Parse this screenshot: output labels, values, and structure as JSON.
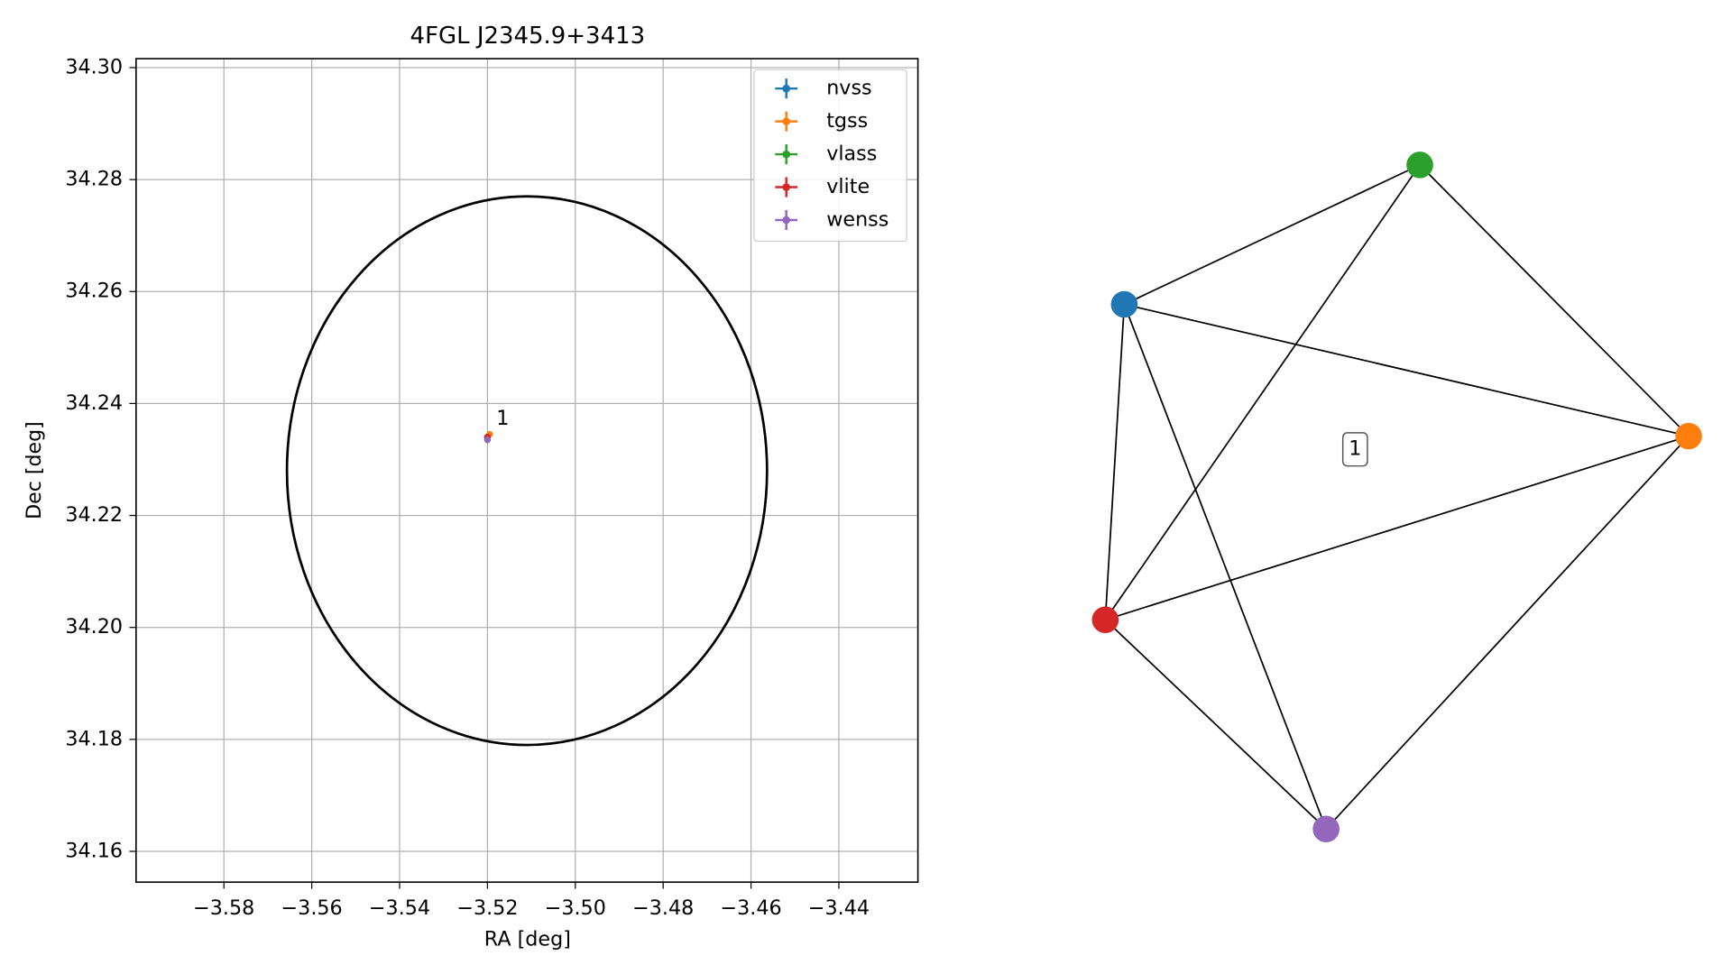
{
  "chart_data": {
    "type": "scatter",
    "title": "4FGL J2345.9+3413",
    "xlabel": "RA [deg]",
    "ylabel": "Dec [deg]",
    "xlim": [
      -3.6,
      -3.422
    ],
    "ylim": [
      34.1545,
      34.3016
    ],
    "xticks": [
      {
        "value": -3.58,
        "label": "−3.58"
      },
      {
        "value": -3.56,
        "label": "−3.56"
      },
      {
        "value": -3.54,
        "label": "−3.54"
      },
      {
        "value": -3.52,
        "label": "−3.52"
      },
      {
        "value": -3.5,
        "label": "−3.50"
      },
      {
        "value": -3.48,
        "label": "−3.48"
      },
      {
        "value": -3.46,
        "label": "−3.46"
      },
      {
        "value": -3.44,
        "label": "−3.44"
      }
    ],
    "yticks": [
      {
        "value": 34.16,
        "label": "34.16"
      },
      {
        "value": 34.18,
        "label": "34.18"
      },
      {
        "value": 34.2,
        "label": "34.20"
      },
      {
        "value": 34.22,
        "label": "34.22"
      },
      {
        "value": 34.24,
        "label": "34.24"
      },
      {
        "value": 34.26,
        "label": "34.26"
      },
      {
        "value": 34.28,
        "label": "34.28"
      },
      {
        "value": 34.3,
        "label": "34.30"
      }
    ],
    "grid": true,
    "legend": "upper right",
    "series": [
      {
        "name": "nvss",
        "color": "#1f77b4",
        "x": [
          -3.52
        ],
        "values": [
          34.234
        ]
      },
      {
        "name": "tgss",
        "color": "#ff7f0e",
        "x": [
          -3.5195
        ],
        "values": [
          34.2345
        ]
      },
      {
        "name": "vlass",
        "color": "#2ca02c",
        "x": [
          -3.52
        ],
        "values": [
          34.234
        ]
      },
      {
        "name": "vlite",
        "color": "#d62728",
        "x": [
          -3.52
        ],
        "values": [
          34.234
        ]
      },
      {
        "name": "wenss",
        "color": "#9467bd",
        "x": [
          -3.52
        ],
        "values": [
          34.2335
        ]
      }
    ],
    "ellipse": {
      "center": [
        -3.511,
        34.228
      ],
      "width": 0.1093,
      "height": 0.098
    },
    "annotations": [
      {
        "text": "1",
        "x": -3.5195,
        "y": 34.2345
      }
    ]
  },
  "graph": {
    "label": "1"
  }
}
